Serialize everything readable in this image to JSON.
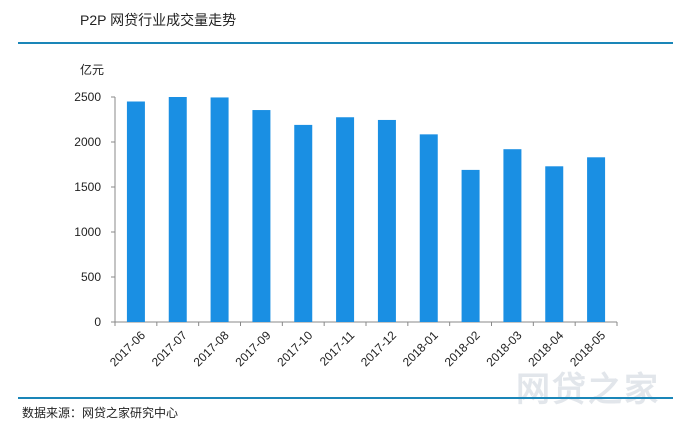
{
  "header": {
    "title": "P2P 网贷行业成交量走势"
  },
  "footer": {
    "source": "数据来源：网贷之家研究中心"
  },
  "watermark": {
    "text": "网贷之家"
  },
  "chart_data": {
    "type": "bar",
    "title": "P2P 网贷行业成交量走势",
    "ylabel": "亿元",
    "xlabel": "",
    "categories": [
      "2017-06",
      "2017-07",
      "2017-08",
      "2017-09",
      "2017-10",
      "2017-11",
      "2017-12",
      "2018-01",
      "2018-02",
      "2018-03",
      "2018-04",
      "2018-05"
    ],
    "values": [
      2450,
      2500,
      2495,
      2355,
      2190,
      2275,
      2245,
      2085,
      1690,
      1920,
      1730,
      1830
    ],
    "ylim": [
      0,
      2500
    ],
    "yticks": [
      0,
      500,
      1000,
      1500,
      2000,
      2500
    ],
    "bar_color": "#1a8fe3",
    "grid": false,
    "legend": "none"
  }
}
